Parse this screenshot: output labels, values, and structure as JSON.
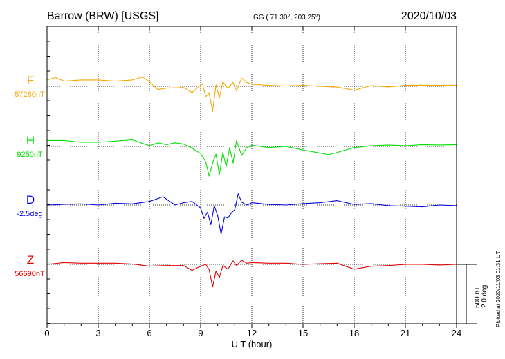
{
  "header": {
    "station": "Barrow (BRW)  [USGS]",
    "coords": "GG ( 71.30°, 203.25°)",
    "date": "2020/10/03"
  },
  "footer": {
    "plotted": "Plotted at 2020/11/03 01:31  UT"
  },
  "colors": {
    "F": "#f5a800",
    "H": "#00e000",
    "D": "#0000e6",
    "Z": "#e00000",
    "frame": "#000000"
  },
  "chart_data": {
    "type": "line",
    "xlabel": "U T (hour)",
    "xlim": [
      0,
      24
    ],
    "x_ticks": [
      0,
      3,
      6,
      9,
      12,
      15,
      18,
      21,
      24
    ],
    "x_tick_labels": [
      "0",
      "3",
      "6",
      "9",
      "12",
      "15",
      "18",
      "21",
      "24"
    ],
    "grid": true,
    "scale_bar": {
      "label_nT": "500 nT",
      "label_deg": "2.0 deg",
      "value_nT": 500,
      "value_deg": 2.0
    },
    "series": [
      {
        "name": "F",
        "baseline_label": "57280nT",
        "baseline": 57280,
        "unit": "nT",
        "x": [
          0,
          0.5,
          1,
          2,
          3,
          4,
          5,
          5.6,
          6,
          6.5,
          7,
          8,
          8.5,
          8.8,
          9.1,
          9.3,
          9.5,
          9.7,
          9.9,
          10.1,
          10.3,
          10.6,
          10.9,
          11.1,
          11.4,
          11.7,
          12,
          13,
          14,
          15,
          16,
          17,
          18,
          19,
          20,
          21,
          22,
          23,
          24
        ],
        "values": [
          57333,
          57353,
          57323,
          57333,
          57333,
          57323,
          57333,
          57358,
          57318,
          57253,
          57265,
          57270,
          57228,
          57265,
          57303,
          57193,
          57225,
          57068,
          57293,
          57183,
          57318,
          57263,
          57313,
          57243,
          57348,
          57313,
          57298,
          57288,
          57283,
          57288,
          57280,
          57273,
          57248,
          57285,
          57275,
          57288,
          57290,
          57288,
          57290
        ]
      },
      {
        "name": "H",
        "baseline_label": "9250nT",
        "baseline": 9250,
        "unit": "nT",
        "x": [
          0,
          1,
          2,
          3,
          4,
          5,
          6,
          6.5,
          7,
          7.5,
          8,
          8.5,
          9,
          9.3,
          9.5,
          9.7,
          9.9,
          10.1,
          10.3,
          10.5,
          10.7,
          10.9,
          11.1,
          11.4,
          11.7,
          12,
          13,
          14,
          15,
          16,
          16.5,
          17,
          18,
          19,
          20,
          21,
          22,
          23,
          24
        ],
        "values": [
          9300,
          9300,
          9285,
          9285,
          9295,
          9305,
          9255,
          9280,
          9265,
          9280,
          9270,
          9235,
          9190,
          9120,
          9000,
          9110,
          9185,
          9010,
          9200,
          9080,
          9240,
          9110,
          9300,
          9175,
          9240,
          9260,
          9240,
          9250,
          9220,
          9195,
          9180,
          9200,
          9240,
          9255,
          9262,
          9255,
          9265,
          9262,
          9265
        ]
      },
      {
        "name": "D",
        "baseline_label": "-2.5deg",
        "baseline": -2.5,
        "unit": "deg",
        "x": [
          0,
          1,
          2,
          3,
          4,
          5,
          6,
          6.8,
          7.5,
          8,
          8.5,
          9,
          9.2,
          9.4,
          9.6,
          9.8,
          10,
          10.2,
          10.4,
          10.6,
          10.8,
          11,
          11.2,
          11.4,
          11.7,
          12,
          13,
          14,
          15,
          16,
          17,
          18,
          19,
          20,
          21,
          22,
          23,
          24
        ],
        "values": [
          -2.5,
          -2.48,
          -2.46,
          -2.5,
          -2.44,
          -2.46,
          -2.38,
          -2.22,
          -2.5,
          -2.42,
          -2.38,
          -2.6,
          -2.95,
          -2.74,
          -3.16,
          -2.52,
          -2.86,
          -3.48,
          -2.9,
          -2.94,
          -2.76,
          -2.66,
          -2.12,
          -2.4,
          -2.5,
          -2.42,
          -2.48,
          -2.5,
          -2.45,
          -2.42,
          -2.35,
          -2.48,
          -2.45,
          -2.52,
          -2.54,
          -2.56,
          -2.5,
          -2.52
        ]
      },
      {
        "name": "Z",
        "baseline_label": "56690nT",
        "baseline": 56690,
        "unit": "nT",
        "x": [
          0,
          1,
          2,
          3,
          4,
          5,
          6,
          7,
          8,
          8.5,
          9,
          9.3,
          9.5,
          9.7,
          9.9,
          10.1,
          10.3,
          10.6,
          10.9,
          11.1,
          11.4,
          11.7,
          12,
          13,
          14,
          15,
          16,
          17,
          18,
          19,
          20,
          21,
          22,
          23,
          24
        ],
        "values": [
          56690,
          56705,
          56700,
          56700,
          56700,
          56693,
          56675,
          56680,
          56680,
          56640,
          56675,
          56690,
          56645,
          56500,
          56635,
          56580,
          56680,
          56650,
          56720,
          56680,
          56725,
          56700,
          56705,
          56700,
          56700,
          56690,
          56695,
          56700,
          56650,
          56675,
          56680,
          56690,
          56690,
          56685,
          56690
        ]
      }
    ]
  }
}
